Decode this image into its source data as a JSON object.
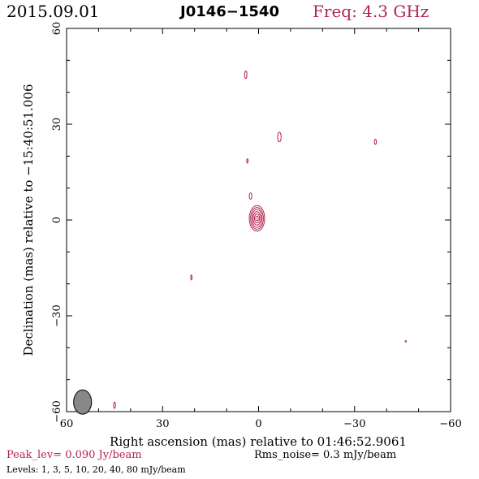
{
  "header": {
    "date": "2015.09.01",
    "source": "J0146−1540",
    "freq": "Freq: 4.3 GHz"
  },
  "footer": {
    "peak": "Peak_lev=  0.090 Jy/beam",
    "rms": "Rms_noise=   0.3 mJy/beam",
    "levels": "Levels:   1,    3,    5,   10,   20,   40,   80 mJy/beam"
  },
  "colors": {
    "contour": "#b4244e",
    "beam": "#888888",
    "axis": "#000000"
  },
  "chart_data": {
    "type": "contour",
    "xlabel": "Right ascension (mas) relative to 01:46:52.9061",
    "ylabel": "Declination (mas) relative to −15:40:51.006",
    "xlim": [
      60,
      -60
    ],
    "ylim": [
      -60,
      60
    ],
    "xticks": [
      60,
      30,
      0,
      -30,
      -60
    ],
    "yticks": [
      -60,
      -30,
      0,
      30,
      60
    ],
    "xtick_labels": [
      "60",
      "30",
      "0",
      "−30",
      "−60"
    ],
    "ytick_labels": [
      "−60",
      "−30",
      "0",
      "30",
      "60"
    ],
    "levels_mJy": [
      1,
      3,
      5,
      10,
      20,
      40,
      80
    ],
    "peak_Jy_per_beam": 0.09,
    "rms_mJy_per_beam": 0.3,
    "core": {
      "x": 0.5,
      "y": 0.5,
      "contours": [
        {
          "a": 2.4,
          "b": 4.0
        },
        {
          "a": 2.0,
          "b": 3.4
        },
        {
          "a": 1.6,
          "b": 2.8
        },
        {
          "a": 1.2,
          "b": 2.1
        },
        {
          "a": 0.8,
          "b": 1.4
        },
        {
          "a": 0.4,
          "b": 0.7
        }
      ]
    },
    "blobs": [
      {
        "x": 4,
        "y": 45.5,
        "a": 0.35,
        "b": 1.2
      },
      {
        "x": -6.5,
        "y": 26,
        "a": 0.55,
        "b": 1.5
      },
      {
        "x": -36.5,
        "y": 24.5,
        "a": 0.3,
        "b": 0.8
      },
      {
        "x": 3.5,
        "y": 18.5,
        "a": 0.2,
        "b": 0.7
      },
      {
        "x": 2.5,
        "y": 7.5,
        "a": 0.4,
        "b": 1.0
      },
      {
        "x": 21,
        "y": -18,
        "a": 0.2,
        "b": 0.8
      },
      {
        "x": 45,
        "y": -58,
        "a": 0.3,
        "b": 1.0
      },
      {
        "x": -46,
        "y": -38,
        "a": 0.2,
        "b": 0.2
      }
    ],
    "beam": {
      "x": 55,
      "y": -57,
      "a": 0.8,
      "b": 2.0
    }
  }
}
